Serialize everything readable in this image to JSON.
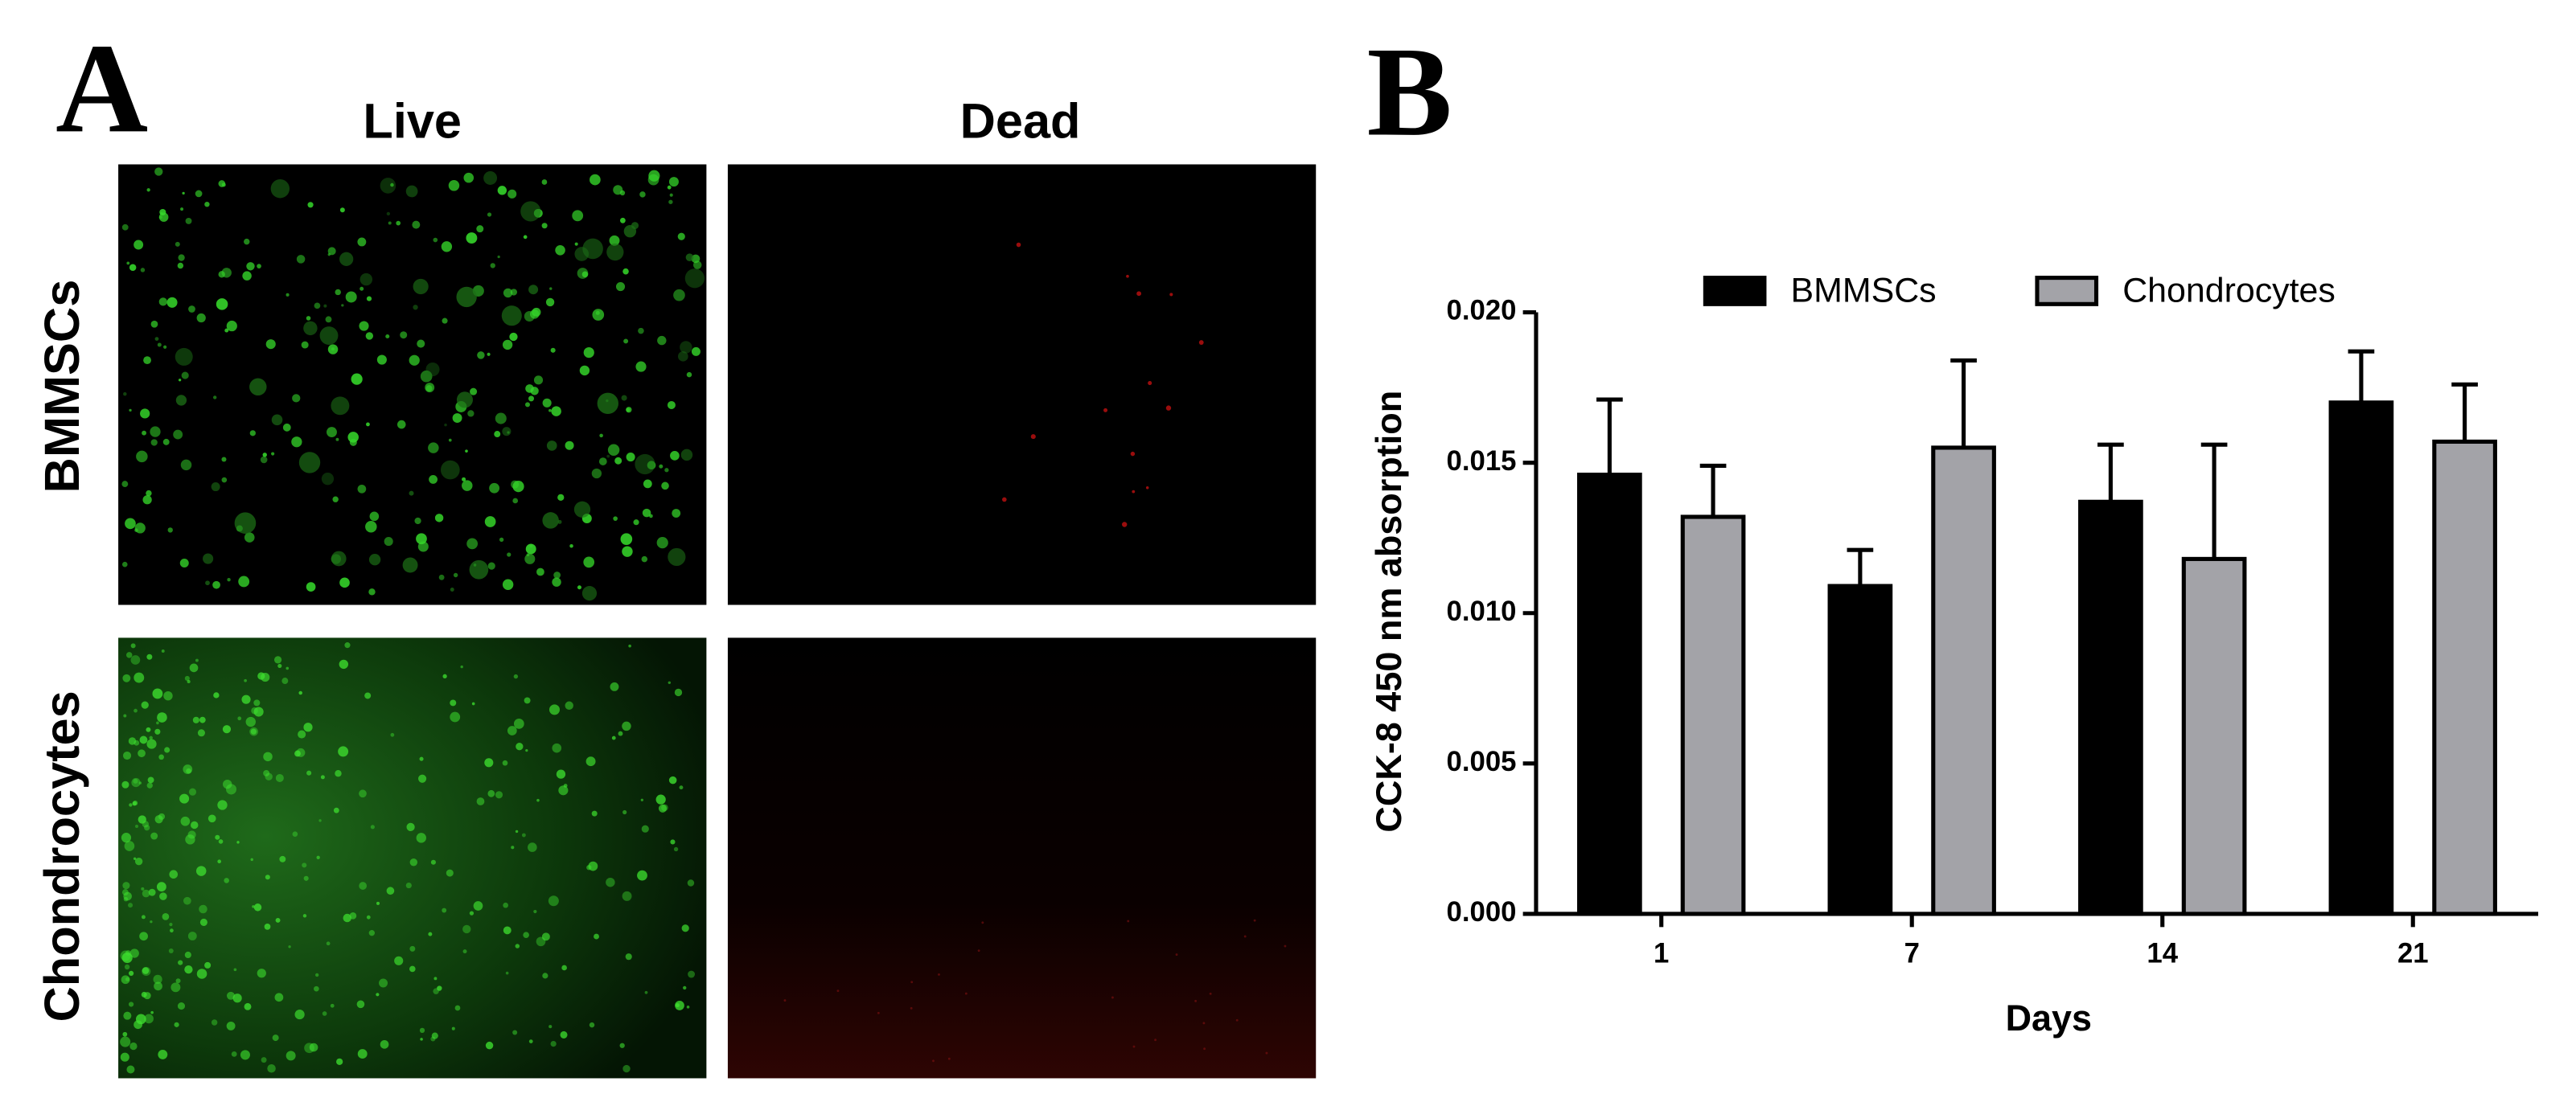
{
  "panel_a": {
    "label": "A",
    "columns": [
      "Live",
      "Dead"
    ],
    "rows": [
      "BMMSCs",
      "Chondrocytes"
    ]
  },
  "panel_b": {
    "label": "B"
  },
  "chart_data": {
    "type": "bar",
    "categories": [
      "1",
      "7",
      "14",
      "21"
    ],
    "x_label": "Days",
    "y_label": "CCK-8 450 nm absorption",
    "series": [
      {
        "name": "BMMSCs",
        "color": "#000000",
        "values": [
          0.0146,
          0.0109,
          0.0137,
          0.017
        ],
        "errors": [
          0.0025,
          0.0012,
          0.0019,
          0.0017
        ]
      },
      {
        "name": "Chondrocytes",
        "color": "#a3a3a8",
        "values": [
          0.0132,
          0.0155,
          0.0118,
          0.0157
        ],
        "errors": [
          0.0017,
          0.0029,
          0.0038,
          0.0019
        ]
      }
    ],
    "ylim": [
      0,
      0.02
    ],
    "yticks": [
      {
        "value": 0,
        "label": "0.000"
      },
      {
        "value": 0.005,
        "label": "0.005"
      },
      {
        "value": 0.01,
        "label": "0.010"
      },
      {
        "value": 0.015,
        "label": "0.015"
      },
      {
        "value": 0.02,
        "label": "0.020"
      }
    ],
    "legend": "top"
  }
}
